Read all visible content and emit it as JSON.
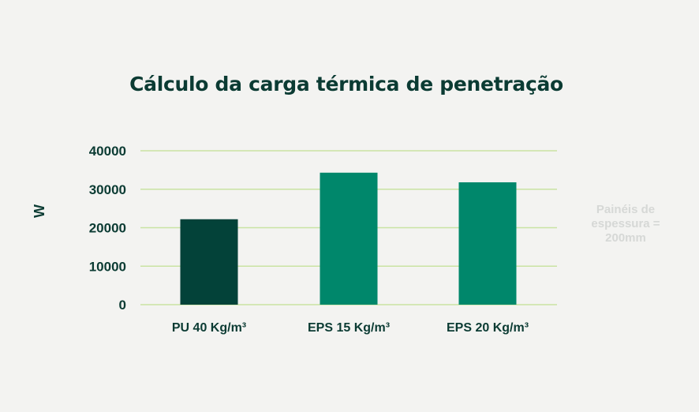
{
  "chart_data": {
    "type": "bar",
    "title": "Cálculo da carga térmica de penetração",
    "ylabel": "W",
    "ylim": [
      0,
      40000
    ],
    "yticks": [
      0,
      10000,
      20000,
      30000,
      40000
    ],
    "grid": true,
    "categories": [
      "PU 40 Kg/m³",
      "EPS 15 Kg/m³",
      "EPS 20 Kg/m³"
    ],
    "values": [
      22200,
      34300,
      31800
    ],
    "bar_colors": [
      "#034239",
      "#00876b",
      "#00876b"
    ],
    "note_lines": [
      "Painéis de",
      "espessura =",
      "200mm"
    ]
  },
  "colors": {
    "text": "#0b3b33",
    "grid": "#c9e3a3",
    "note": "#d6d8d6",
    "background": "#f3f3f1"
  }
}
